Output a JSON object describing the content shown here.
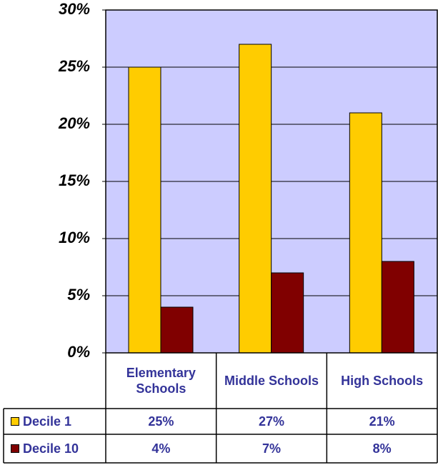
{
  "chart_data": {
    "type": "bar",
    "categories": [
      "Elementary Schools",
      "Middle Schools",
      "High Schools"
    ],
    "series": [
      {
        "name": "Decile 1",
        "color": "#ffcc00",
        "values": [
          25,
          27,
          21
        ],
        "value_labels": [
          "25%",
          "27%",
          "21%"
        ]
      },
      {
        "name": "Decile 10",
        "color": "#800000",
        "values": [
          4,
          7,
          8
        ],
        "value_labels": [
          "4%",
          "7%",
          "8%"
        ]
      }
    ],
    "ylim": [
      0,
      30
    ],
    "yticks": [
      {
        "value": 0,
        "label": "0%"
      },
      {
        "value": 5,
        "label": "5%"
      },
      {
        "value": 10,
        "label": "10%"
      },
      {
        "value": 15,
        "label": "15%"
      },
      {
        "value": 20,
        "label": "20%"
      },
      {
        "value": 25,
        "label": "25%"
      },
      {
        "value": 30,
        "label": "30%"
      }
    ],
    "grid": true,
    "plot_background": "#ccccff"
  }
}
